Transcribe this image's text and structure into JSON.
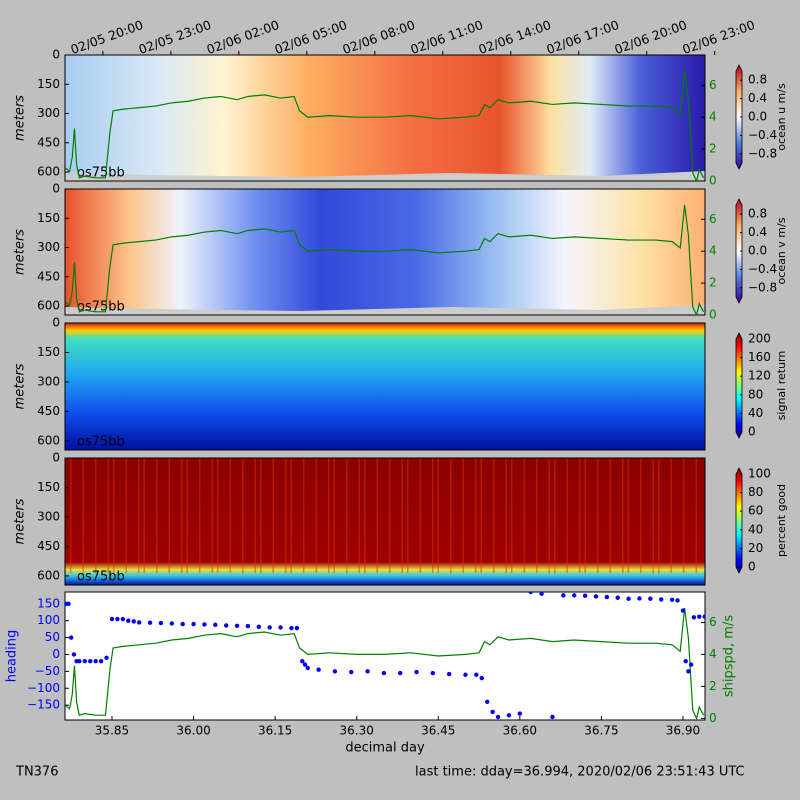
{
  "chart_data": [
    {
      "type": "heatmap",
      "ylabel": "meters",
      "ylim": [
        646,
        0
      ],
      "yticks": [
        0,
        150,
        300,
        450,
        600
      ],
      "xlim": [
        35.7636,
        36.9405
      ],
      "xticks_top": [
        {
          "value": 35.8333,
          "label": "02/05 20:00"
        },
        {
          "value": 35.9583,
          "label": "02/05 23:00"
        },
        {
          "value": 36.0833,
          "label": "02/06 02:00"
        },
        {
          "value": 36.2083,
          "label": "02/06 05:00"
        },
        {
          "value": 36.3333,
          "label": "02/06 08:00"
        },
        {
          "value": 36.4583,
          "label": "02/06 11:00"
        },
        {
          "value": 36.5833,
          "label": "02/06 14:00"
        },
        {
          "value": 36.7083,
          "label": "02/06 17:00"
        },
        {
          "value": 36.8333,
          "label": "02/06 20:00"
        },
        {
          "value": 36.9583,
          "label": "02/06 23:00"
        }
      ],
      "label": "os75bb",
      "colorbar": {
        "label": "ocean u m/s",
        "clim": [
          -1,
          1
        ],
        "ticks": [
          0.8,
          0.4,
          {
            "value": 0,
            "label": "0.0"
          },
          {
            "value": -0.4,
            "label": "−0.4"
          },
          {
            "value": -0.8,
            "label": "−0.8"
          }
        ]
      },
      "y2lim": [
        0,
        7.9
      ],
      "y2ticks": [
        0,
        2,
        4,
        6
      ],
      "shipspd": {
        "color": "#007f00",
        "x": [
          35.765,
          35.772,
          35.777,
          35.781,
          35.785,
          35.79,
          35.8,
          35.82,
          35.838,
          35.846,
          35.852,
          35.87,
          35.9,
          35.93,
          35.96,
          35.99,
          36.02,
          36.05,
          36.08,
          36.1,
          36.13,
          36.16,
          36.185,
          36.195,
          36.21,
          36.25,
          36.3,
          36.35,
          36.4,
          36.45,
          36.5,
          36.525,
          36.535,
          36.545,
          36.56,
          36.58,
          36.62,
          36.66,
          36.7,
          36.75,
          36.8,
          36.85,
          36.88,
          36.895,
          36.903,
          36.91,
          36.918,
          36.925,
          36.93,
          36.938
        ],
        "values": [
          0.8,
          0.6,
          1.5,
          3.3,
          1.0,
          0.2,
          0.3,
          0.2,
          0.2,
          3.0,
          4.4,
          4.5,
          4.6,
          4.7,
          4.9,
          5.0,
          5.2,
          5.3,
          5.1,
          5.3,
          5.4,
          5.2,
          5.3,
          4.4,
          4.0,
          4.1,
          4.0,
          4.0,
          4.1,
          3.9,
          4.0,
          4.1,
          4.8,
          4.6,
          5.1,
          4.9,
          5.0,
          4.8,
          4.9,
          4.8,
          4.7,
          4.7,
          4.6,
          4.2,
          6.9,
          5.0,
          0.5,
          0.0,
          0.7,
          0.2
        ]
      }
    },
    {
      "type": "heatmap",
      "ylabel": "meters",
      "ylim": [
        646,
        0
      ],
      "yticks": [
        0,
        150,
        300,
        450,
        600
      ],
      "xlim": [
        35.7636,
        36.9405
      ],
      "label": "os75bb",
      "colorbar": {
        "label": "ocean v m/s",
        "clim": [
          -1,
          1
        ],
        "ticks": [
          0.8,
          0.4,
          {
            "value": 0,
            "label": "0.0"
          },
          {
            "value": -0.4,
            "label": "−0.4"
          },
          {
            "value": -0.8,
            "label": "−0.8"
          }
        ]
      },
      "y2lim": [
        0,
        7.9
      ],
      "y2ticks": [
        0,
        2,
        4,
        6
      ],
      "shipspd": {
        "color": "#007f00",
        "x": [
          35.765,
          35.772,
          35.777,
          35.781,
          35.785,
          35.79,
          35.8,
          35.82,
          35.838,
          35.846,
          35.852,
          35.87,
          35.9,
          35.93,
          35.96,
          35.99,
          36.02,
          36.05,
          36.08,
          36.1,
          36.13,
          36.16,
          36.185,
          36.195,
          36.21,
          36.25,
          36.3,
          36.35,
          36.4,
          36.45,
          36.5,
          36.525,
          36.535,
          36.545,
          36.56,
          36.58,
          36.62,
          36.66,
          36.7,
          36.75,
          36.8,
          36.85,
          36.88,
          36.895,
          36.903,
          36.91,
          36.918,
          36.925,
          36.93,
          36.938
        ],
        "values": [
          0.8,
          0.6,
          1.5,
          3.3,
          1.0,
          0.2,
          0.3,
          0.2,
          0.2,
          3.0,
          4.4,
          4.5,
          4.6,
          4.7,
          4.9,
          5.0,
          5.2,
          5.3,
          5.1,
          5.3,
          5.4,
          5.2,
          5.3,
          4.4,
          4.0,
          4.1,
          4.0,
          4.0,
          4.1,
          3.9,
          4.0,
          4.1,
          4.8,
          4.6,
          5.1,
          4.9,
          5.0,
          4.8,
          4.9,
          4.8,
          4.7,
          4.7,
          4.6,
          4.2,
          6.9,
          5.0,
          0.5,
          0.0,
          0.7,
          0.2
        ]
      }
    },
    {
      "type": "heatmap",
      "ylabel": "meters",
      "ylim": [
        646,
        0
      ],
      "yticks": [
        0,
        150,
        300,
        450,
        600
      ],
      "xlim": [
        35.7636,
        36.9405
      ],
      "label": "os75bb",
      "colorbar": {
        "label": "signal return",
        "clim": [
          0,
          200
        ],
        "ticks": [
          0,
          40,
          80,
          120,
          160,
          200
        ]
      }
    },
    {
      "type": "heatmap",
      "ylabel": "meters",
      "ylim": [
        646,
        0
      ],
      "yticks": [
        0,
        150,
        300,
        450,
        600
      ],
      "xlim": [
        35.7636,
        36.9405
      ],
      "label": "os75bb",
      "colorbar": {
        "label": "percent good",
        "clim": [
          0,
          100
        ],
        "ticks": [
          0,
          20,
          40,
          60,
          80,
          100
        ]
      }
    },
    {
      "type": "scatter",
      "ylabel": "heading",
      "y2label": "shipspd, m/s",
      "xlabel": "decimal day",
      "xlim": [
        35.7636,
        36.9405
      ],
      "ylim": [
        -194,
        185
      ],
      "yticks": [
        150,
        100,
        50,
        0,
        {
          "value": -50,
          "label": "−50"
        },
        {
          "value": -100,
          "label": "−100"
        },
        {
          "value": -150,
          "label": "−150"
        }
      ],
      "xticks": [
        35.85,
        {
          "value": 36,
          "label": "36.00"
        },
        36.15,
        {
          "value": 36.3,
          "label": "36.30"
        },
        36.45,
        {
          "value": 36.6,
          "label": "36.60"
        },
        36.75,
        {
          "value": 36.9,
          "label": "36.90"
        }
      ],
      "y2lim": [
        -0.1,
        7.9
      ],
      "y2ticks": [
        0,
        2,
        4,
        6
      ],
      "heading": {
        "color": "#0000ff",
        "x": [
          35.765,
          35.77,
          35.775,
          35.78,
          35.785,
          35.79,
          35.8,
          35.81,
          35.82,
          35.83,
          35.84,
          35.85,
          35.86,
          35.87,
          35.88,
          35.89,
          35.9,
          35.92,
          35.94,
          35.96,
          35.98,
          36.0,
          36.02,
          36.04,
          36.06,
          36.08,
          36.1,
          36.12,
          36.14,
          36.16,
          36.18,
          36.19,
          36.2,
          36.205,
          36.21,
          36.23,
          36.26,
          36.29,
          36.32,
          36.35,
          36.38,
          36.41,
          36.44,
          36.47,
          36.5,
          36.52,
          36.53,
          36.54,
          36.55,
          36.56,
          36.58,
          36.6,
          36.62,
          36.64,
          36.66,
          36.68,
          36.7,
          36.72,
          36.74,
          36.76,
          36.78,
          36.8,
          36.82,
          36.84,
          36.86,
          36.88,
          36.89,
          36.9,
          36.905,
          36.91,
          36.915,
          36.92,
          36.93,
          36.94
        ],
        "values": [
          150,
          150,
          50,
          0,
          -20,
          -20,
          -20,
          -20,
          -20,
          -20,
          -10,
          105,
          105,
          105,
          100,
          98,
          95,
          94,
          93,
          92,
          90,
          90,
          89,
          88,
          86,
          85,
          84,
          82,
          80,
          80,
          78,
          78,
          -20,
          -30,
          -40,
          -45,
          -50,
          -52,
          -50,
          -55,
          -55,
          -52,
          -55,
          -58,
          -60,
          -60,
          -70,
          -140,
          -170,
          -185,
          -180,
          -175,
          185,
          180,
          -185,
          175,
          175,
          174,
          172,
          170,
          168,
          165,
          166,
          165,
          163,
          162,
          160,
          130,
          -20,
          -50,
          -30,
          110,
          112,
          112
        ]
      },
      "shipspd": {
        "color": "#007f00",
        "x": [
          35.765,
          35.772,
          35.777,
          35.781,
          35.785,
          35.79,
          35.8,
          35.82,
          35.838,
          35.846,
          35.852,
          35.87,
          35.9,
          35.93,
          35.96,
          35.99,
          36.02,
          36.05,
          36.08,
          36.1,
          36.13,
          36.16,
          36.185,
          36.195,
          36.21,
          36.25,
          36.3,
          36.35,
          36.4,
          36.45,
          36.5,
          36.525,
          36.535,
          36.545,
          36.56,
          36.58,
          36.62,
          36.66,
          36.7,
          36.75,
          36.8,
          36.85,
          36.88,
          36.895,
          36.903,
          36.91,
          36.918,
          36.925,
          36.93,
          36.938
        ],
        "values": [
          0.8,
          0.6,
          1.5,
          3.3,
          1.0,
          0.2,
          0.3,
          0.2,
          0.2,
          3.0,
          4.4,
          4.5,
          4.6,
          4.7,
          4.9,
          5.0,
          5.2,
          5.3,
          5.1,
          5.3,
          5.4,
          5.2,
          5.3,
          4.4,
          4.0,
          4.1,
          4.0,
          4.0,
          4.1,
          3.9,
          4.0,
          4.1,
          4.8,
          4.6,
          5.1,
          4.9,
          5.0,
          4.8,
          4.9,
          4.8,
          4.7,
          4.7,
          4.6,
          4.2,
          6.9,
          5.0,
          0.5,
          0.0,
          0.7,
          0.2
        ]
      }
    }
  ],
  "footer": {
    "left": "TN376",
    "right": "last time: dday=36.994,  2020/02/06 23:51:43 UTC"
  }
}
